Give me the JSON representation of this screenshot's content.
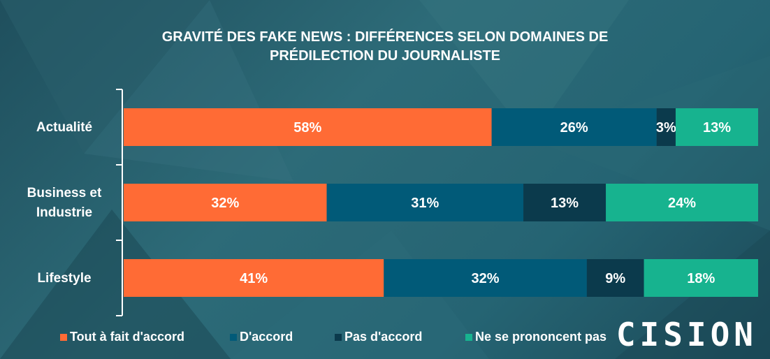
{
  "title": {
    "line1": "GRAVITÉ DES FAKE NEWS : DIFFÉRENCES SELON DOMAINES DE",
    "line2": "PRÉDILECTION DU JOURNALISTE"
  },
  "logo": {
    "text": "CISION"
  },
  "colors": {
    "tout_a_fait": "#ff6b35",
    "d_accord": "#015a78",
    "pas_d_accord": "#0b3a4c",
    "ne_se_prononcent": "#17b38f"
  },
  "chart_data": {
    "type": "bar",
    "orientation": "horizontal",
    "stacked": true,
    "normalized": true,
    "categories": [
      "Actualité",
      "Business et Industrie",
      "Lifestyle"
    ],
    "category_lines": [
      [
        "Actualité"
      ],
      [
        "Business et",
        "Industrie"
      ],
      [
        "Lifestyle"
      ]
    ],
    "series": [
      {
        "name": "Tout à fait d'accord",
        "values": [
          58,
          32,
          41
        ],
        "labels": [
          "58%",
          "32%",
          "41%"
        ]
      },
      {
        "name": "D'accord",
        "values": [
          26,
          31,
          32
        ],
        "labels": [
          "26%",
          "31%",
          "32%"
        ]
      },
      {
        "name": "Pas d'accord",
        "values": [
          3,
          13,
          9
        ],
        "labels": [
          "3%",
          "13%",
          "9%"
        ]
      },
      {
        "name": "Ne se prononcent pas",
        "values": [
          13,
          24,
          18
        ],
        "labels": [
          "13%",
          "24%",
          "18%"
        ]
      }
    ],
    "legend_position": "bottom",
    "grid": false
  },
  "legend": [
    {
      "label": "Tout à fait d'accord",
      "color": "#ff6b35"
    },
    {
      "label": "D'accord",
      "color": "#015a78"
    },
    {
      "label": "Pas d'accord",
      "color": "#0b3a4c"
    },
    {
      "label": "Ne se prononcent pas",
      "color": "#17b38f"
    }
  ]
}
